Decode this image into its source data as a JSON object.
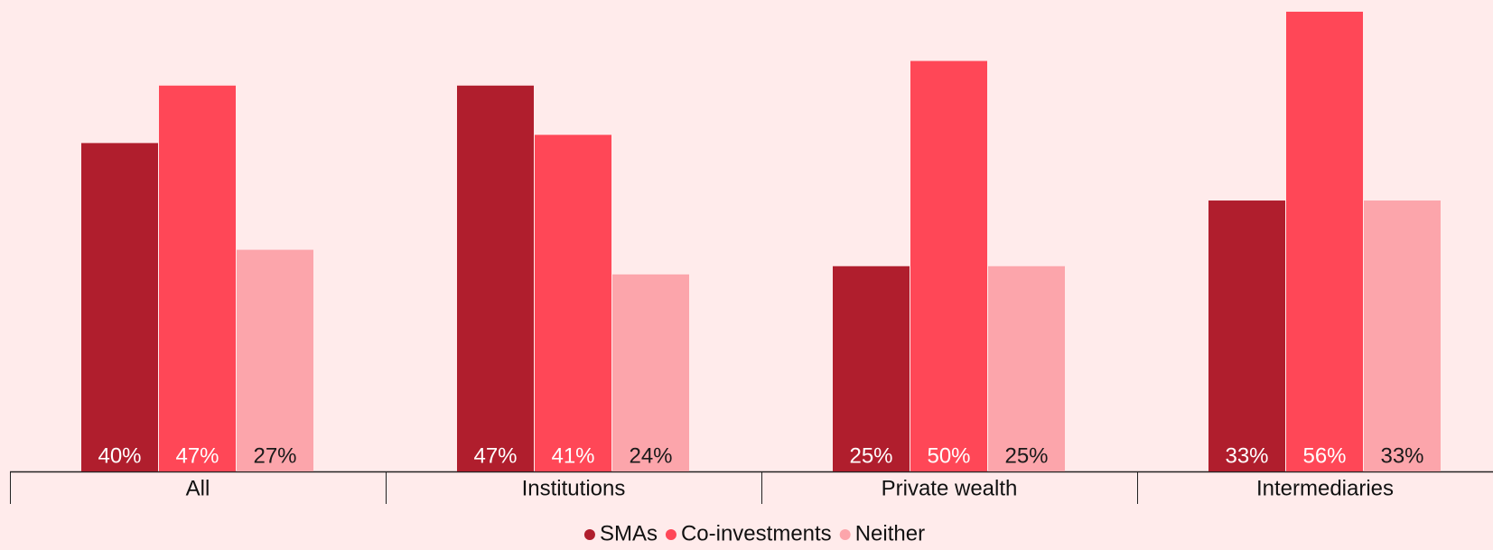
{
  "chart_data": {
    "type": "bar",
    "categories": [
      "All",
      "Institutions",
      "Private wealth",
      "Intermediaries"
    ],
    "series": [
      {
        "name": "SMAs",
        "color": "#b01e2d",
        "values": [
          40,
          47,
          25,
          33
        ],
        "value_labels": [
          "40%",
          "47%",
          "25%",
          "33%"
        ]
      },
      {
        "name": "Co-investments",
        "color": "#ff4757",
        "values": [
          47,
          41,
          50,
          56
        ],
        "value_labels": [
          "47%",
          "41%",
          "50%",
          "56%"
        ]
      },
      {
        "name": "Neither",
        "color": "#fca5ab",
        "values": [
          27,
          24,
          25,
          33
        ],
        "value_labels": [
          "27%",
          "24%",
          "25%",
          "33%"
        ]
      }
    ]
  }
}
